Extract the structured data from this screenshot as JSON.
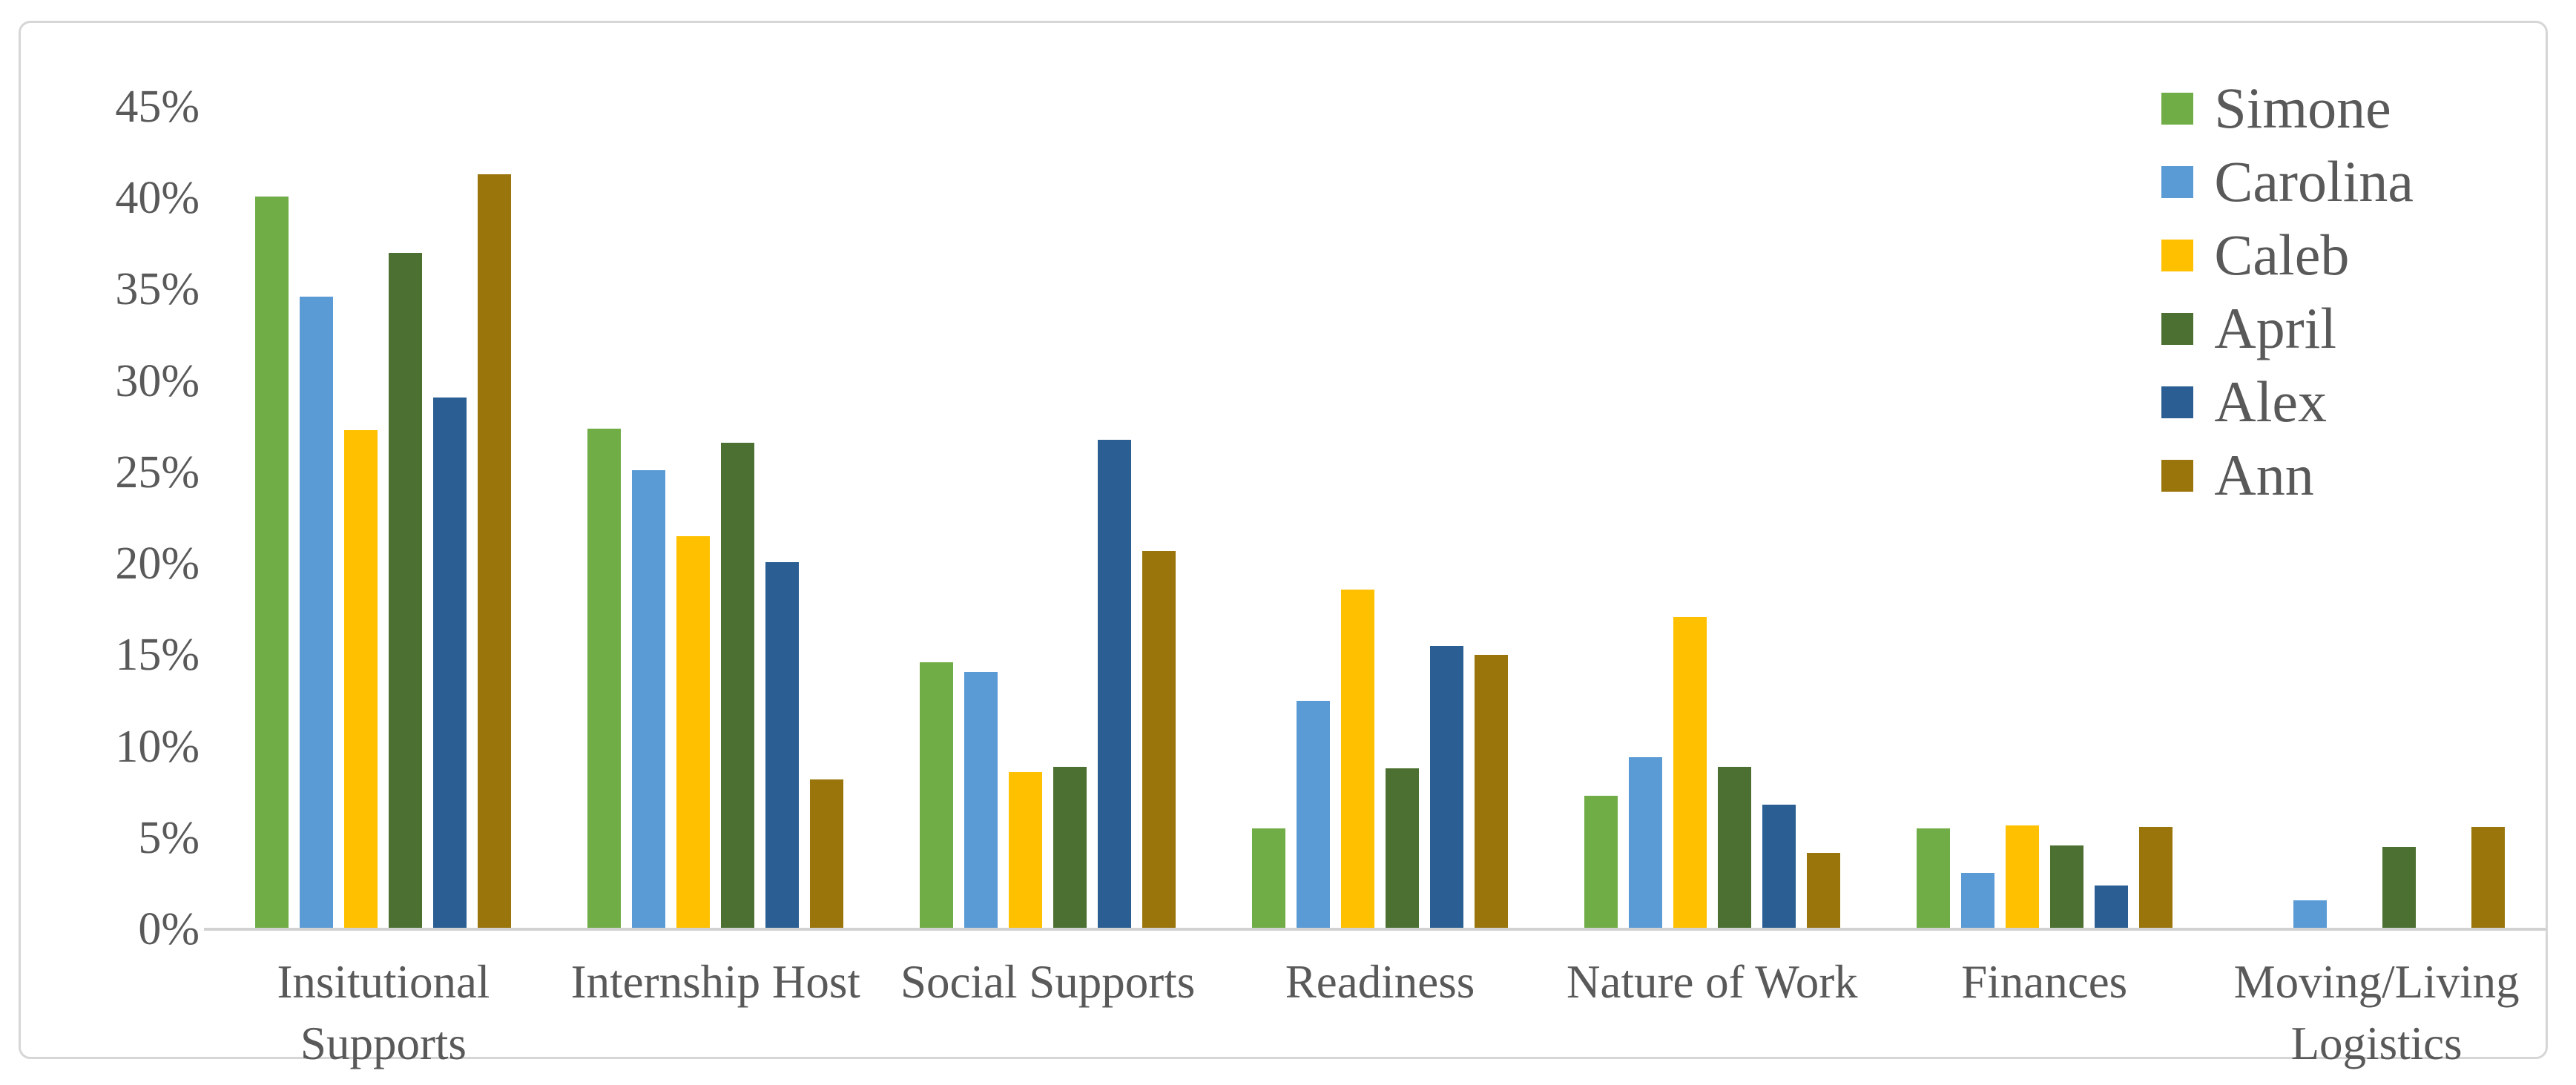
{
  "chart_data": {
    "type": "bar",
    "title": "",
    "xlabel": "",
    "ylabel": "",
    "categories": [
      "Insitutional\nSupports",
      "Internship Host",
      "Social Supports",
      "Readiness",
      "Nature of Work",
      "Finances",
      "Moving/Living\nLogistics"
    ],
    "series": [
      {
        "name": "Simone",
        "color": "#70AD47",
        "values": [
          40.1,
          27.4,
          14.6,
          5.5,
          7.3,
          5.5,
          0
        ]
      },
      {
        "name": "Carolina",
        "color": "#5B9BD5",
        "values": [
          34.6,
          25.1,
          14.1,
          12.5,
          9.4,
          3.1,
          1.6
        ]
      },
      {
        "name": "Caleb",
        "color": "#FFC000",
        "values": [
          27.3,
          21.5,
          8.6,
          18.6,
          17.1,
          5.7,
          0
        ]
      },
      {
        "name": "April",
        "color": "#4C7031",
        "values": [
          37.0,
          26.6,
          8.9,
          8.8,
          8.9,
          4.6,
          4.5
        ]
      },
      {
        "name": "Alex",
        "color": "#2B5F93",
        "values": [
          29.1,
          20.1,
          26.8,
          15.5,
          6.8,
          2.4,
          0
        ]
      },
      {
        "name": "Ann",
        "color": "#9A750B",
        "values": [
          41.3,
          8.2,
          20.7,
          15.0,
          4.2,
          5.6,
          5.6
        ]
      }
    ],
    "ylim": [
      0,
      45
    ],
    "ytick_step": 5,
    "ytick_labels": [
      "0%",
      "5%",
      "10%",
      "15%",
      "20%",
      "25%",
      "30%",
      "35%",
      "40%",
      "45%"
    ],
    "grid": false,
    "legend_position": "top-right",
    "axis_text_color": "#595959",
    "axis_line_color": "#d2d2d2"
  }
}
